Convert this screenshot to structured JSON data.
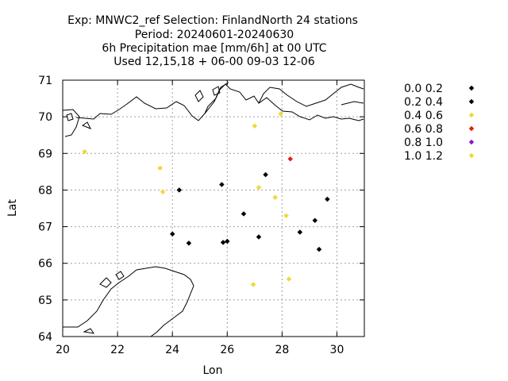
{
  "chart_data": {
    "type": "scatter",
    "title_lines": [
      "Exp: MNWC2_ref   Selection: FinlandNorth     24 stations",
      "Period: 20240601-20240630",
      "6h Precipitation mae [mm/6h] at  00 UTC",
      "Used 12,15,18 + 06-00 09-03 12-06"
    ],
    "xlabel": "Lon",
    "ylabel": "Lat",
    "xlim": [
      20,
      31
    ],
    "ylim": [
      64,
      71
    ],
    "xticks": [
      "20",
      "22",
      "24",
      "26",
      "28",
      "30"
    ],
    "yticks": [
      "64",
      "65",
      "66",
      "67",
      "68",
      "69",
      "70",
      "71"
    ],
    "grid": true,
    "legend_position": "right",
    "legend": [
      {
        "label": "0.0 0.2",
        "color": "#000000"
      },
      {
        "label": "0.2 0.4",
        "color": "#000000"
      },
      {
        "label": "0.4 0.6",
        "color": "#f0d83a"
      },
      {
        "label": "0.6 0.8",
        "color": "#e02010"
      },
      {
        "label": "0.8 1.0",
        "color": "#8a1cc8"
      },
      {
        "label": "1.0 1.2",
        "color": "#f0d83a"
      }
    ],
    "points": [
      {
        "lon": 20.8,
        "lat": 69.05,
        "class": 2
      },
      {
        "lon": 23.55,
        "lat": 68.6,
        "class": 2
      },
      {
        "lon": 23.65,
        "lat": 67.95,
        "class": 2
      },
      {
        "lon": 24.25,
        "lat": 68.0,
        "class": 1
      },
      {
        "lon": 24.0,
        "lat": 66.8,
        "class": 1
      },
      {
        "lon": 24.6,
        "lat": 66.55,
        "class": 1
      },
      {
        "lon": 25.8,
        "lat": 68.15,
        "class": 1
      },
      {
        "lon": 25.85,
        "lat": 66.57,
        "class": 1
      },
      {
        "lon": 26.0,
        "lat": 66.6,
        "class": 1
      },
      {
        "lon": 26.6,
        "lat": 67.35,
        "class": 1
      },
      {
        "lon": 27.0,
        "lat": 69.75,
        "class": 2
      },
      {
        "lon": 27.15,
        "lat": 68.07,
        "class": 2
      },
      {
        "lon": 27.15,
        "lat": 66.72,
        "class": 1
      },
      {
        "lon": 27.4,
        "lat": 68.42,
        "class": 1
      },
      {
        "lon": 27.75,
        "lat": 67.8,
        "class": 2
      },
      {
        "lon": 27.95,
        "lat": 70.08,
        "class": 2
      },
      {
        "lon": 28.15,
        "lat": 67.3,
        "class": 2
      },
      {
        "lon": 28.3,
        "lat": 68.85,
        "class": 3
      },
      {
        "lon": 28.65,
        "lat": 66.85,
        "class": 1
      },
      {
        "lon": 29.2,
        "lat": 67.17,
        "class": 1
      },
      {
        "lon": 29.35,
        "lat": 66.38,
        "class": 1
      },
      {
        "lon": 29.65,
        "lat": 67.75,
        "class": 1
      },
      {
        "lon": 26.95,
        "lat": 65.42,
        "class": 5
      },
      {
        "lon": 28.25,
        "lat": 65.57,
        "class": 5
      }
    ]
  }
}
